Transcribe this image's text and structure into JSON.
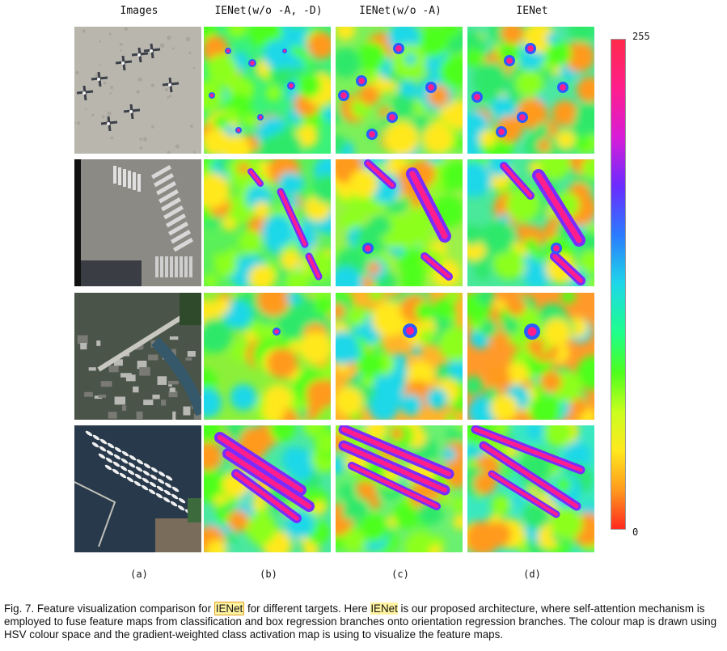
{
  "headers": [
    "Images",
    "IENet(w/o -A, -D)",
    "IENet(w/o -A)",
    "IENet"
  ],
  "sublabels": [
    "(a)",
    "(b)",
    "(c)",
    "(d)"
  ],
  "colorbar": {
    "max_label": "255",
    "min_label": "0"
  },
  "rows": [
    {
      "scene": "airport-planes",
      "photo_color": "#b9b6ae"
    },
    {
      "scene": "parking-lot-trucks",
      "photo_color": "#8c8a84"
    },
    {
      "scene": "city-bridge-river",
      "photo_color": "#5a6458"
    },
    {
      "scene": "harbor-boats",
      "photo_color": "#2e3f4c"
    }
  ],
  "caption": {
    "prefix": "Fig. 7. Feature visualization comparison for ",
    "term_boxed": "IENet",
    "mid1": " for different targets. Here ",
    "term_highlight": "IENet",
    "rest": " is our proposed architecture, where self-attention mechanism is employed to fuse feature maps from classification and box regression branches onto orientation regression branches. The colour map is drawn using HSV colour space and the gradient-weighted class activation map is using to visualize the feature maps."
  }
}
